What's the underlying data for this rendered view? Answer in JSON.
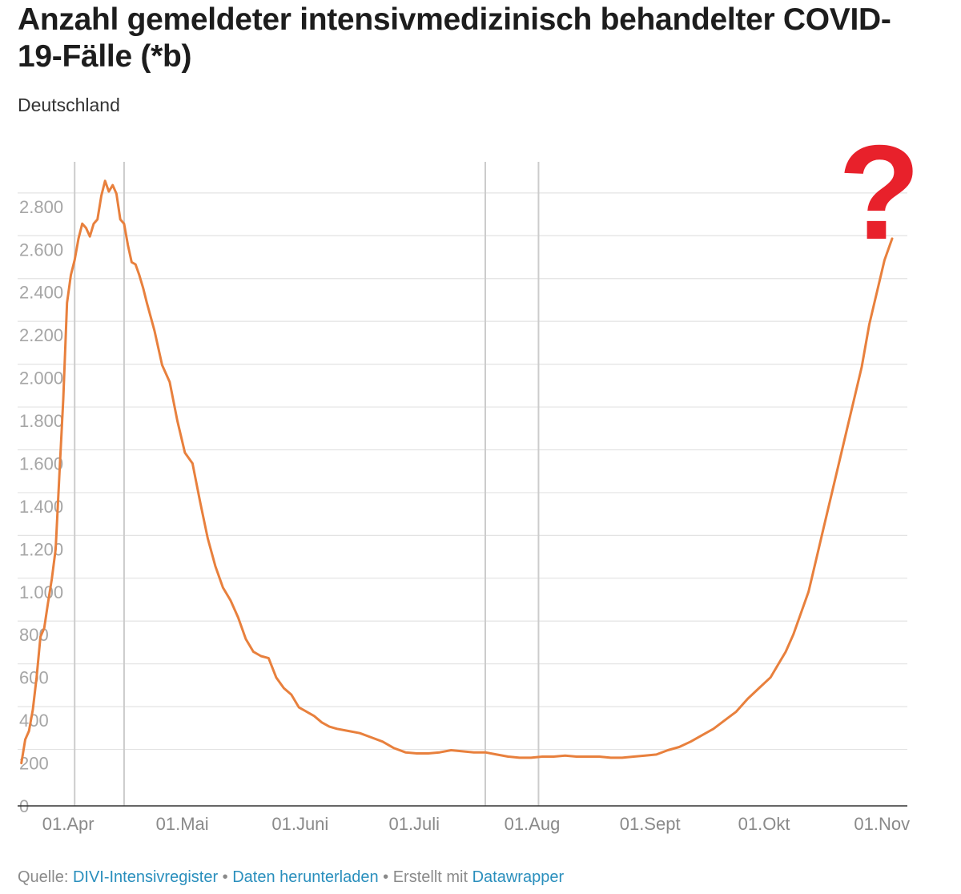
{
  "chart_data": {
    "type": "line",
    "title": "Anzahl gemeldeter intensivmedizinisch behandelter COVID-19-Fälle (*b)",
    "subtitle": "Deutschland",
    "xlabel": "",
    "ylabel": "",
    "ylim": [
      0,
      2900
    ],
    "yticks": [
      0,
      200,
      400,
      600,
      800,
      1000,
      1200,
      1400,
      1600,
      1800,
      2000,
      2200,
      2400,
      2600,
      2800
    ],
    "ytick_labels": [
      "0",
      "200",
      "400",
      "600",
      "800",
      "1.000",
      "1.200",
      "1.400",
      "1.600",
      "1.800",
      "2.000",
      "2.200",
      "2.400",
      "2.600",
      "2.800"
    ],
    "xlim": [
      "2020-03-17",
      "2020-11-06"
    ],
    "xticks": [
      "2020-04-01",
      "2020-05-01",
      "2020-06-01",
      "2020-07-01",
      "2020-08-01",
      "2020-09-01",
      "2020-10-01",
      "2020-11-01"
    ],
    "xtick_labels": [
      "01.Apr",
      "01.Mai",
      "01.Juni",
      "01.Juli",
      "01.Aug",
      "01.Sept",
      "01.Okt",
      "01.Nov"
    ],
    "vertical_lines": [
      "2020-04-01",
      "2020-04-14",
      "2020-07-18",
      "2020-08-01"
    ],
    "grid": true,
    "line_color": "#e8803d",
    "annotation": "?",
    "annotation_color": "#e8212b",
    "series": [
      {
        "x": [
          "2020-03-18",
          "2020-03-19",
          "2020-03-20",
          "2020-03-21",
          "2020-03-22",
          "2020-03-23",
          "2020-03-24",
          "2020-03-25",
          "2020-03-26",
          "2020-03-27",
          "2020-03-28",
          "2020-03-29",
          "2020-03-30",
          "2020-03-31",
          "2020-04-01",
          "2020-04-02",
          "2020-04-03",
          "2020-04-04",
          "2020-04-05",
          "2020-04-06",
          "2020-04-07",
          "2020-04-08",
          "2020-04-09",
          "2020-04-10",
          "2020-04-11",
          "2020-04-12",
          "2020-04-13",
          "2020-04-14",
          "2020-04-15",
          "2020-04-16",
          "2020-04-17",
          "2020-04-18",
          "2020-04-19",
          "2020-04-20",
          "2020-04-22",
          "2020-04-24",
          "2020-04-26",
          "2020-04-28",
          "2020-04-30",
          "2020-05-02",
          "2020-05-04",
          "2020-05-06",
          "2020-05-08",
          "2020-05-10",
          "2020-05-12",
          "2020-05-14",
          "2020-05-16",
          "2020-05-18",
          "2020-05-20",
          "2020-05-22",
          "2020-05-24",
          "2020-05-26",
          "2020-05-28",
          "2020-05-30",
          "2020-06-01",
          "2020-06-03",
          "2020-06-05",
          "2020-06-07",
          "2020-06-09",
          "2020-06-12",
          "2020-06-15",
          "2020-06-18",
          "2020-06-21",
          "2020-06-24",
          "2020-06-27",
          "2020-06-30",
          "2020-07-03",
          "2020-07-06",
          "2020-07-09",
          "2020-07-12",
          "2020-07-15",
          "2020-07-18",
          "2020-07-21",
          "2020-07-24",
          "2020-07-27",
          "2020-07-30",
          "2020-08-02",
          "2020-08-05",
          "2020-08-08",
          "2020-08-11",
          "2020-08-14",
          "2020-08-17",
          "2020-08-20",
          "2020-08-23",
          "2020-08-26",
          "2020-08-29",
          "2020-09-01",
          "2020-09-04",
          "2020-09-07",
          "2020-09-10",
          "2020-09-13",
          "2020-09-16",
          "2020-09-19",
          "2020-09-22",
          "2020-09-25",
          "2020-09-28",
          "2020-10-01",
          "2020-10-03",
          "2020-10-05",
          "2020-10-07",
          "2020-10-09",
          "2020-10-11",
          "2020-10-13",
          "2020-10-15",
          "2020-10-17",
          "2020-10-19",
          "2020-10-21",
          "2020-10-23",
          "2020-10-25",
          "2020-10-27",
          "2020-10-29",
          "2020-10-31",
          "2020-11-02"
        ],
        "values": [
          200,
          310,
          350,
          450,
          600,
          790,
          830,
          950,
          1060,
          1200,
          1550,
          1900,
          2350,
          2480,
          2550,
          2650,
          2720,
          2700,
          2660,
          2720,
          2740,
          2850,
          2920,
          2870,
          2900,
          2860,
          2740,
          2720,
          2620,
          2540,
          2530,
          2480,
          2420,
          2350,
          2220,
          2060,
          1980,
          1800,
          1650,
          1600,
          1420,
          1250,
          1120,
          1020,
          960,
          880,
          780,
          720,
          700,
          690,
          600,
          550,
          520,
          460,
          440,
          420,
          390,
          370,
          360,
          350,
          340,
          320,
          300,
          270,
          250,
          245,
          245,
          250,
          260,
          255,
          250,
          250,
          240,
          230,
          225,
          225,
          230,
          230,
          235,
          230,
          230,
          230,
          225,
          225,
          230,
          235,
          240,
          260,
          275,
          300,
          330,
          360,
          400,
          440,
          500,
          550,
          600,
          660,
          720,
          800,
          900,
          1000,
          1150,
          1300,
          1450,
          1600,
          1750,
          1900,
          2050,
          2250,
          2400,
          2550,
          2650
        ]
      }
    ]
  },
  "source": {
    "prefix": "Quelle: ",
    "register_link": "DIVI-Intensivregister",
    "sep1": " • ",
    "download_link": "Daten herunterladen",
    "sep2": " • Erstellt mit ",
    "tool_link": "Datawrapper"
  }
}
